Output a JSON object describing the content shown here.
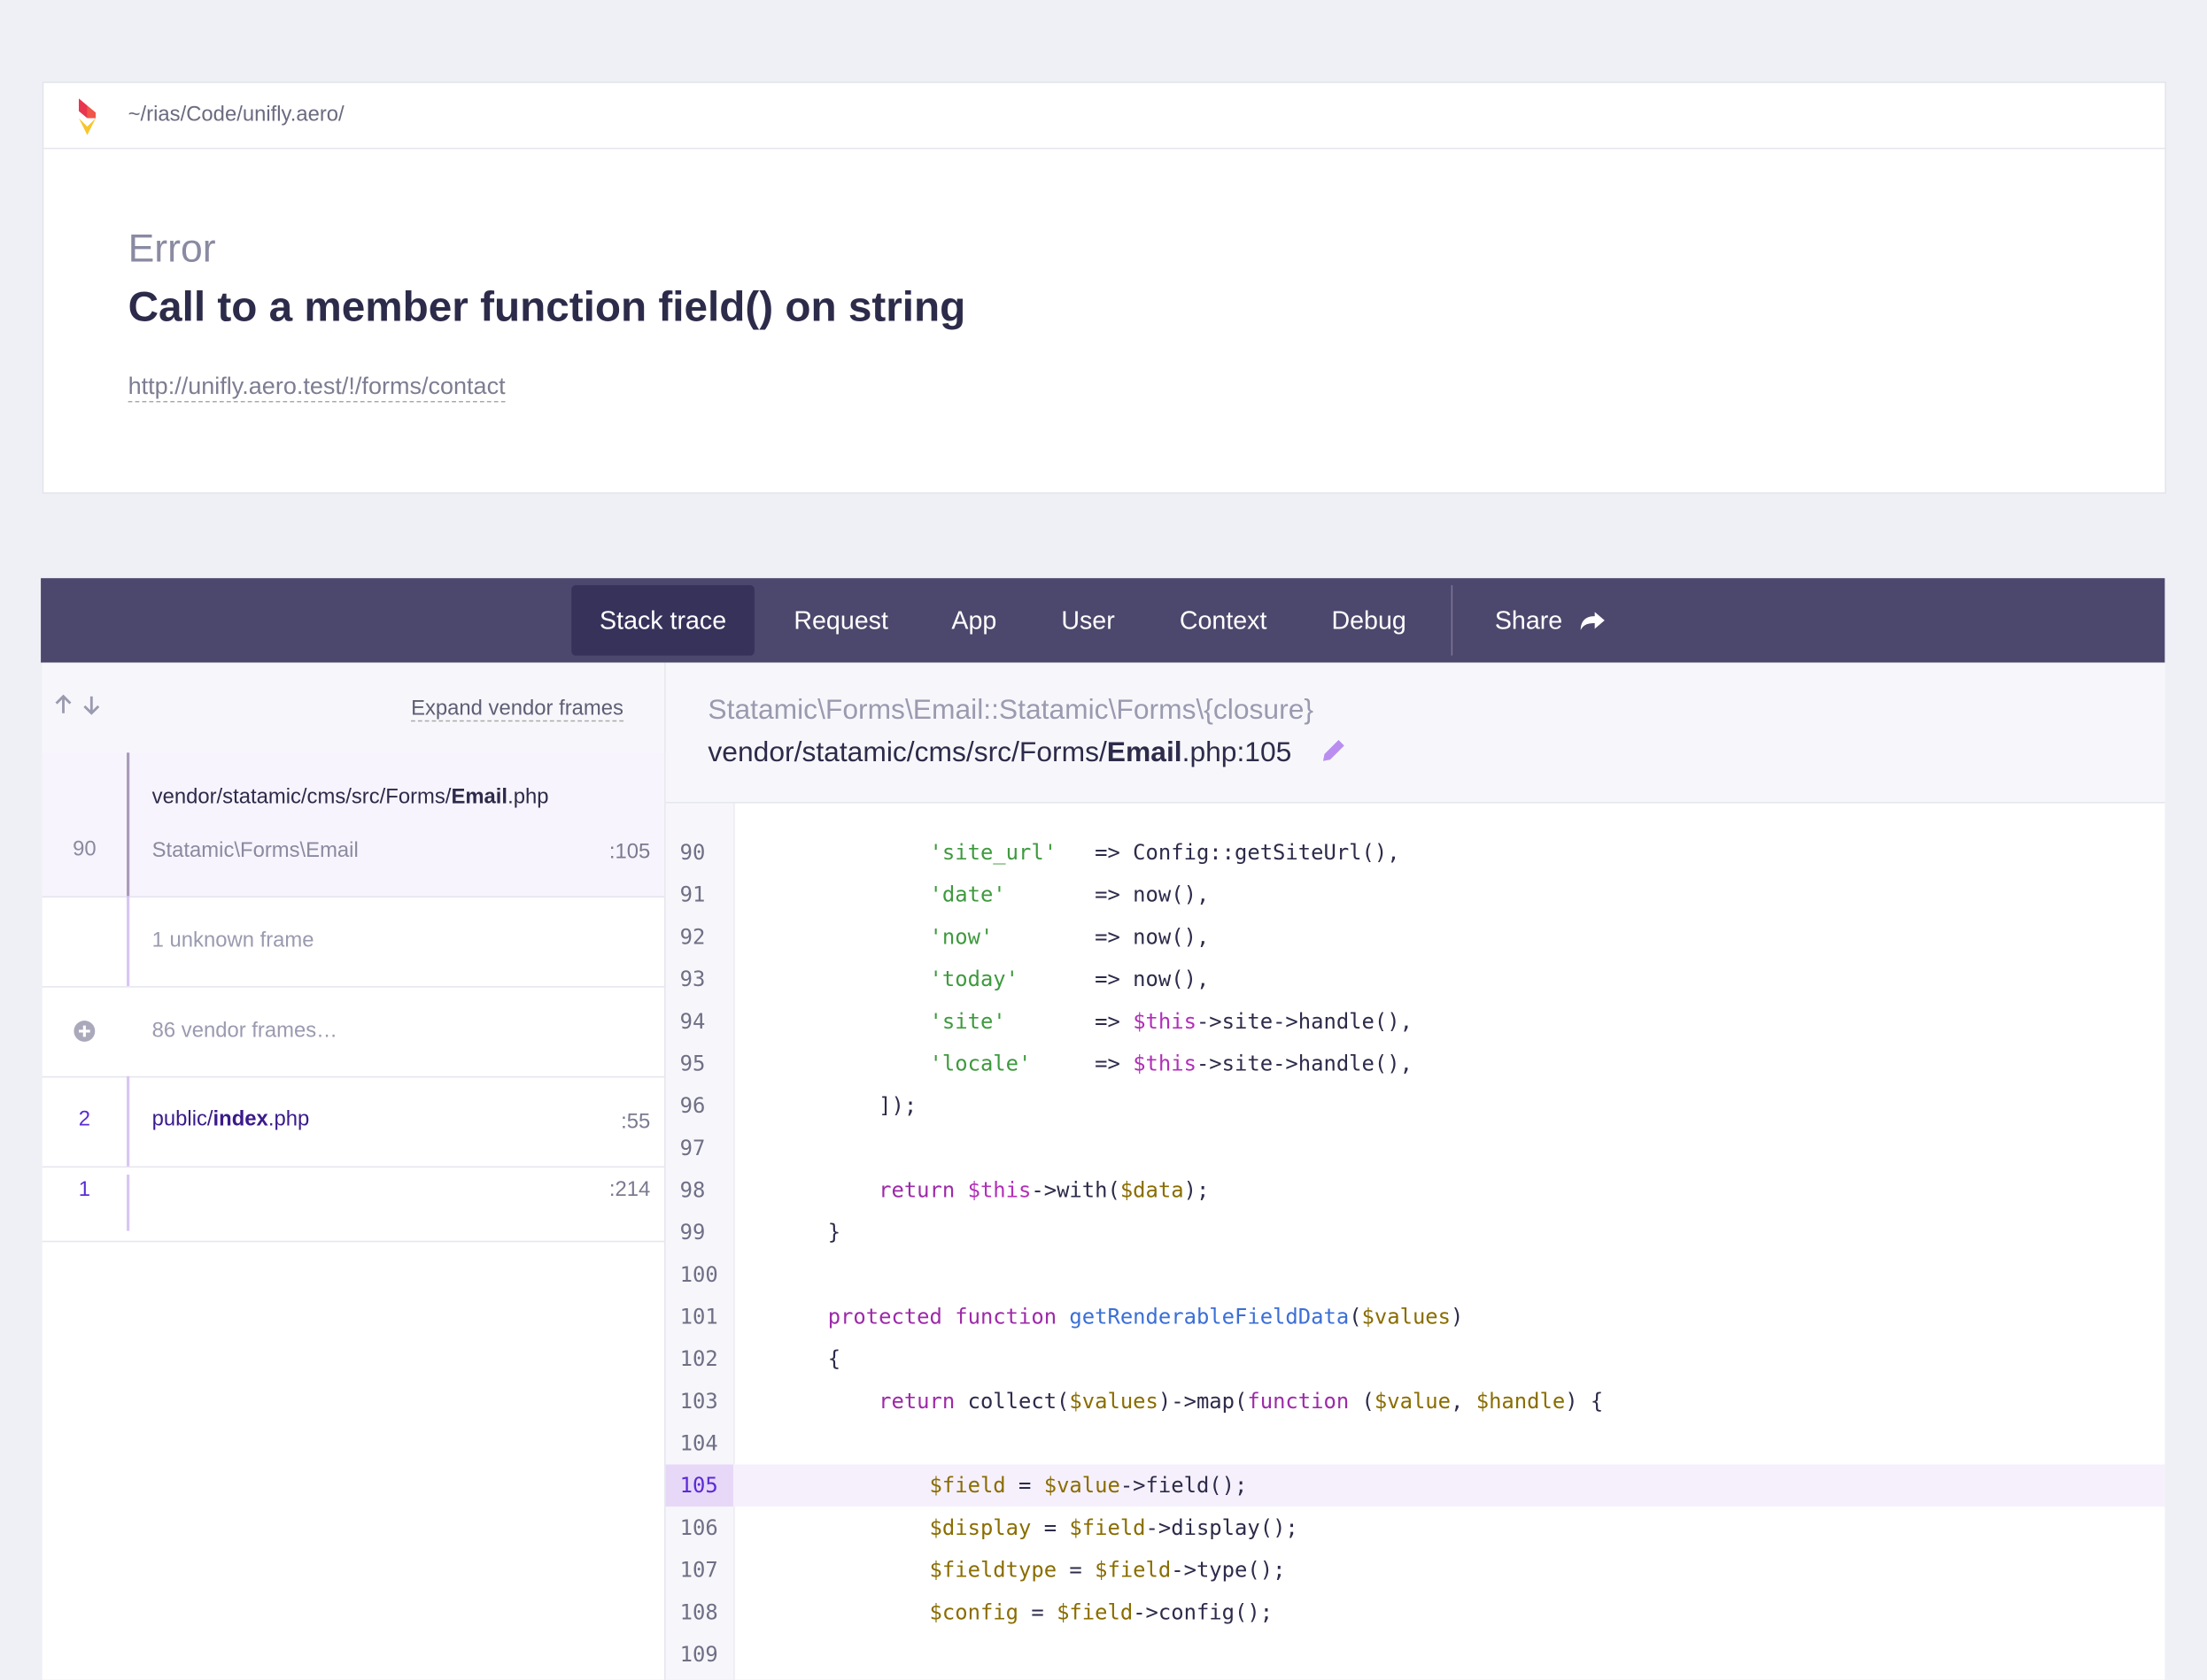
{
  "header": {
    "path": "~/rias/Code/unifly.aero/"
  },
  "error": {
    "type": "Error",
    "message": "Call to a member function field() on string",
    "url": "http://unifly.aero.test/!/forms/contact"
  },
  "tabs": [
    "Stack trace",
    "Request",
    "App",
    "User",
    "Context",
    "Debug",
    "Share"
  ],
  "stack": {
    "expand": "Expand vendor frames",
    "frames": [
      {
        "number": "90",
        "dir": "vendor/statamic/cms/src/Forms/",
        "name": "Email",
        "ext": ".php",
        "class": "Statamic\\Forms\\Email",
        "line": ":105"
      },
      {
        "text": "1 unknown frame"
      },
      {
        "text": "86 vendor frames…"
      },
      {
        "number": "2",
        "dir": "public/",
        "name": "index",
        "ext": ".php",
        "line": ":55"
      },
      {
        "number": "1",
        "line": ":214"
      }
    ]
  },
  "detail": {
    "title": "Statamic\\Forms\\Email::Statamic\\Forms\\{closure}",
    "dir": "vendor/statamic/cms/src/Forms/",
    "name": "Email",
    "ext": ".php:105"
  },
  "code": [
    {
      "number": "90",
      "tokens": [
        [
          "p",
          "            "
        ],
        [
          "s",
          "'site_url'"
        ],
        [
          "p",
          "   => Config::getSiteUrl(),"
        ]
      ]
    },
    {
      "number": "91",
      "tokens": [
        [
          "p",
          "            "
        ],
        [
          "s",
          "'date'"
        ],
        [
          "p",
          "       => now(),"
        ]
      ]
    },
    {
      "number": "92",
      "tokens": [
        [
          "p",
          "            "
        ],
        [
          "s",
          "'now'"
        ],
        [
          "p",
          "        => now(),"
        ]
      ]
    },
    {
      "number": "93",
      "tokens": [
        [
          "p",
          "            "
        ],
        [
          "s",
          "'today'"
        ],
        [
          "p",
          "      => now(),"
        ]
      ]
    },
    {
      "number": "94",
      "tokens": [
        [
          "p",
          "            "
        ],
        [
          "s",
          "'site'"
        ],
        [
          "p",
          "       => "
        ],
        [
          "t",
          "$this"
        ],
        [
          "p",
          "->site->handle(),"
        ]
      ]
    },
    {
      "number": "95",
      "tokens": [
        [
          "p",
          "            "
        ],
        [
          "s",
          "'locale'"
        ],
        [
          "p",
          "     => "
        ],
        [
          "t",
          "$this"
        ],
        [
          "p",
          "->site->handle(),"
        ]
      ]
    },
    {
      "number": "96",
      "tokens": [
        [
          "p",
          "        ]);"
        ]
      ]
    },
    {
      "number": "97",
      "tokens": []
    },
    {
      "number": "98",
      "tokens": [
        [
          "p",
          "        "
        ],
        [
          "k",
          "return"
        ],
        [
          "p",
          " "
        ],
        [
          "t",
          "$this"
        ],
        [
          "p",
          "->with("
        ],
        [
          "v",
          "$data"
        ],
        [
          "p",
          ");"
        ]
      ]
    },
    {
      "number": "99",
      "tokens": [
        [
          "p",
          "    }"
        ]
      ]
    },
    {
      "number": "100",
      "tokens": []
    },
    {
      "number": "101",
      "tokens": [
        [
          "p",
          "    "
        ],
        [
          "k",
          "protected function"
        ],
        [
          "p",
          " "
        ],
        [
          "f",
          "getRenderableFieldData"
        ],
        [
          "p",
          "("
        ],
        [
          "v",
          "$values"
        ],
        [
          "p",
          ")"
        ]
      ]
    },
    {
      "number": "102",
      "tokens": [
        [
          "p",
          "    {"
        ]
      ]
    },
    {
      "number": "103",
      "tokens": [
        [
          "p",
          "        "
        ],
        [
          "k",
          "return"
        ],
        [
          "p",
          " collect("
        ],
        [
          "v",
          "$values"
        ],
        [
          "p",
          ")->map("
        ],
        [
          "k",
          "function"
        ],
        [
          "p",
          " ("
        ],
        [
          "v",
          "$value"
        ],
        [
          "p",
          ", "
        ],
        [
          "v",
          "$handle"
        ],
        [
          "p",
          ") {"
        ]
      ]
    },
    {
      "number": "104",
      "tokens": []
    },
    {
      "number": "105",
      "highlight": true,
      "tokens": [
        [
          "p",
          "            "
        ],
        [
          "v",
          "$field"
        ],
        [
          "p",
          " = "
        ],
        [
          "v",
          "$value"
        ],
        [
          "p",
          "->field();"
        ]
      ]
    },
    {
      "number": "106",
      "tokens": [
        [
          "p",
          "            "
        ],
        [
          "v",
          "$display"
        ],
        [
          "p",
          " = "
        ],
        [
          "v",
          "$field"
        ],
        [
          "p",
          "->display();"
        ]
      ]
    },
    {
      "number": "107",
      "tokens": [
        [
          "p",
          "            "
        ],
        [
          "v",
          "$fieldtype"
        ],
        [
          "p",
          " = "
        ],
        [
          "v",
          "$field"
        ],
        [
          "p",
          "->type();"
        ]
      ]
    },
    {
      "number": "108",
      "tokens": [
        [
          "p",
          "            "
        ],
        [
          "v",
          "$config"
        ],
        [
          "p",
          " = "
        ],
        [
          "v",
          "$field"
        ],
        [
          "p",
          "->config();"
        ]
      ]
    },
    {
      "number": "109",
      "tokens": []
    }
  ]
}
